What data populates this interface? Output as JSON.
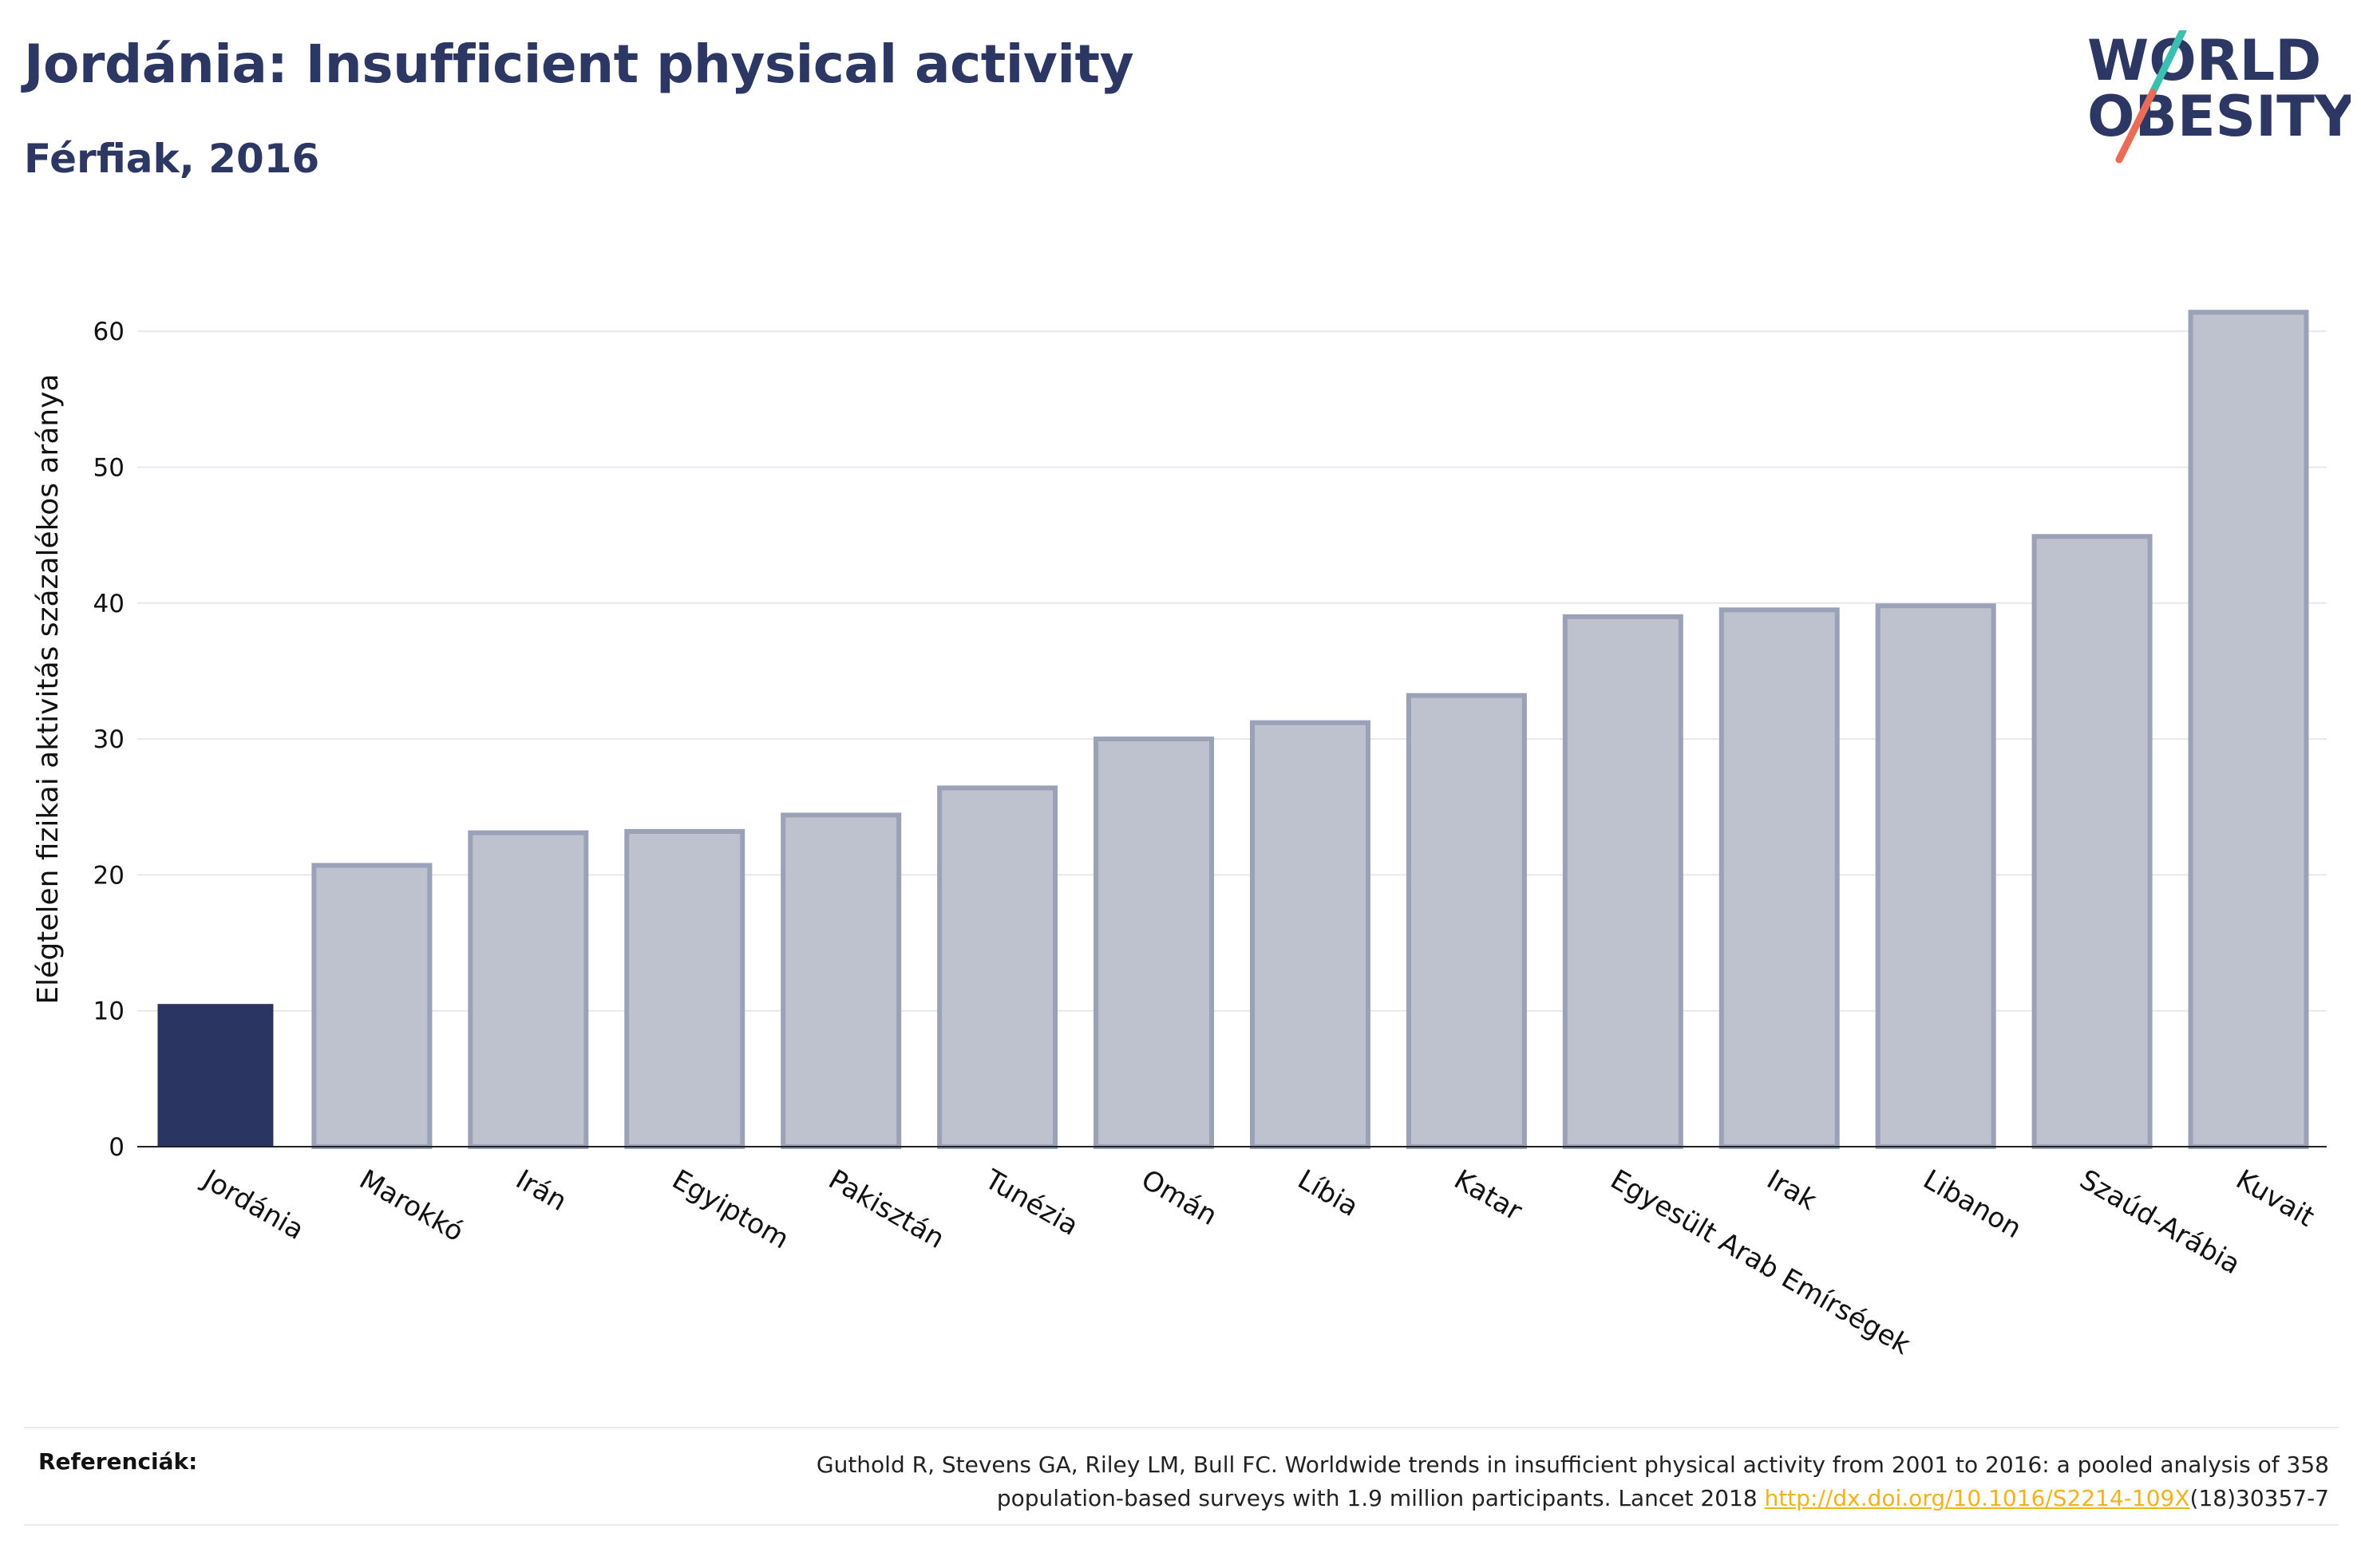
{
  "header": {
    "title": "Jordánia: Insufficient physical activity",
    "subtitle": "Férfiak, 2016"
  },
  "logo": {
    "line1": "WORLD",
    "line2": "OBESITY",
    "colors": {
      "text": "#2d3763",
      "slash_top": "#3cbfb3",
      "slash_bottom": "#ea6b58"
    }
  },
  "colors": {
    "highlight_bar": "#2b3561",
    "other_bar_fill": "#bec2cf",
    "other_bar_stroke": "#9ba1b6",
    "grid": "#e6e8ec",
    "axis": "#222222"
  },
  "chart_data": {
    "type": "bar",
    "title": "Jordánia: Insufficient physical activity",
    "subtitle": "Férfiak, 2016",
    "xlabel": "",
    "ylabel": "Elégtelen fizikai aktivitás százalékos aránya",
    "ylim": [
      0,
      65
    ],
    "yticks": [
      0,
      10,
      20,
      30,
      40,
      50,
      60
    ],
    "grid": true,
    "highlight": "Jordánia",
    "categories": [
      "Jordánia",
      "Marokkó",
      "Irán",
      "Egyiptom",
      "Pakisztán",
      "Tunézia",
      "Omán",
      "Líbia",
      "Katar",
      "Egyesült Arab Emírségek",
      "Irak",
      "Libanon",
      "Szaúd-Arábia",
      "Kuvait"
    ],
    "values": [
      10.5,
      20.7,
      23.1,
      23.2,
      24.4,
      26.4,
      30.0,
      31.2,
      33.2,
      39.0,
      39.5,
      39.8,
      44.9,
      61.4
    ]
  },
  "references": {
    "label": "Referenciák:",
    "line1": "Guthold R, Stevens GA, Riley LM, Bull FC. Worldwide trends in insufficient physical activity from 2001 to 2016: a pooled analysis of 358",
    "line2_prefix": "population-based surveys with 1.9 million participants. Lancet 2018 ",
    "link_text": "http://dx.doi.org/10.1016/S2214-109X",
    "line2_suffix": "(18)30357-7"
  }
}
